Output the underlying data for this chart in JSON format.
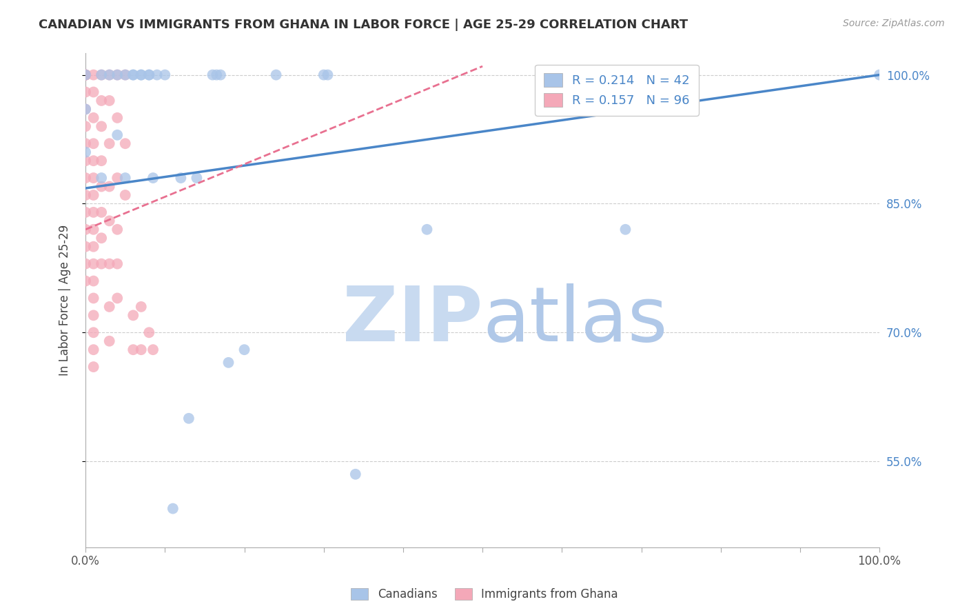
{
  "title": "CANADIAN VS IMMIGRANTS FROM GHANA IN LABOR FORCE | AGE 25-29 CORRELATION CHART",
  "source": "Source: ZipAtlas.com",
  "ylabel": "In Labor Force | Age 25-29",
  "xlim": [
    0.0,
    1.0
  ],
  "ylim": [
    0.45,
    1.025
  ],
  "yticks": [
    0.55,
    0.7,
    0.85,
    1.0
  ],
  "ytick_labels": [
    "55.0%",
    "70.0%",
    "85.0%",
    "100.0%"
  ],
  "canadians_R": 0.214,
  "canadians_N": 42,
  "ghana_R": 0.157,
  "ghana_N": 96,
  "canadians_color": "#a8c4e8",
  "ghana_color": "#f4a8b8",
  "canadians_line_color": "#4a86c8",
  "ghana_line_color": "#e87090",
  "canadians_line": [
    [
      0.0,
      0.868
    ],
    [
      1.0,
      1.0
    ]
  ],
  "ghana_line": [
    [
      0.0,
      0.82
    ],
    [
      0.5,
      1.01
    ]
  ],
  "canadians_scatter": [
    [
      0.0,
      1.0
    ],
    [
      0.0,
      0.96
    ],
    [
      0.0,
      0.91
    ],
    [
      0.02,
      1.0
    ],
    [
      0.02,
      0.88
    ],
    [
      0.03,
      1.0
    ],
    [
      0.04,
      1.0
    ],
    [
      0.04,
      0.93
    ],
    [
      0.05,
      1.0
    ],
    [
      0.05,
      0.88
    ],
    [
      0.06,
      1.0
    ],
    [
      0.06,
      1.0
    ],
    [
      0.07,
      1.0
    ],
    [
      0.07,
      1.0
    ],
    [
      0.08,
      1.0
    ],
    [
      0.08,
      1.0
    ],
    [
      0.085,
      0.88
    ],
    [
      0.09,
      1.0
    ],
    [
      0.1,
      1.0
    ],
    [
      0.11,
      0.495
    ],
    [
      0.12,
      0.88
    ],
    [
      0.13,
      0.6
    ],
    [
      0.14,
      0.88
    ],
    [
      0.16,
      1.0
    ],
    [
      0.165,
      1.0
    ],
    [
      0.17,
      1.0
    ],
    [
      0.18,
      0.665
    ],
    [
      0.2,
      0.68
    ],
    [
      0.24,
      1.0
    ],
    [
      0.3,
      1.0
    ],
    [
      0.305,
      1.0
    ],
    [
      0.34,
      0.535
    ],
    [
      0.43,
      0.82
    ],
    [
      0.68,
      0.82
    ],
    [
      1.0,
      1.0
    ]
  ],
  "ghana_scatter": [
    [
      0.0,
      1.0
    ],
    [
      0.0,
      1.0
    ],
    [
      0.0,
      1.0
    ],
    [
      0.0,
      1.0
    ],
    [
      0.0,
      1.0
    ],
    [
      0.0,
      0.98
    ],
    [
      0.0,
      0.96
    ],
    [
      0.0,
      0.94
    ],
    [
      0.0,
      0.92
    ],
    [
      0.0,
      0.9
    ],
    [
      0.0,
      0.88
    ],
    [
      0.0,
      0.86
    ],
    [
      0.0,
      0.84
    ],
    [
      0.0,
      0.82
    ],
    [
      0.0,
      0.8
    ],
    [
      0.0,
      0.78
    ],
    [
      0.0,
      0.76
    ],
    [
      0.01,
      1.0
    ],
    [
      0.01,
      0.98
    ],
    [
      0.01,
      0.95
    ],
    [
      0.01,
      0.92
    ],
    [
      0.01,
      0.9
    ],
    [
      0.01,
      0.88
    ],
    [
      0.01,
      0.86
    ],
    [
      0.01,
      0.84
    ],
    [
      0.01,
      0.82
    ],
    [
      0.01,
      0.8
    ],
    [
      0.01,
      0.78
    ],
    [
      0.01,
      0.76
    ],
    [
      0.01,
      0.74
    ],
    [
      0.01,
      0.72
    ],
    [
      0.01,
      0.7
    ],
    [
      0.01,
      0.68
    ],
    [
      0.01,
      0.66
    ],
    [
      0.02,
      1.0
    ],
    [
      0.02,
      0.97
    ],
    [
      0.02,
      0.94
    ],
    [
      0.02,
      0.9
    ],
    [
      0.02,
      0.87
    ],
    [
      0.02,
      0.84
    ],
    [
      0.02,
      0.81
    ],
    [
      0.02,
      0.78
    ],
    [
      0.03,
      1.0
    ],
    [
      0.03,
      0.97
    ],
    [
      0.03,
      0.92
    ],
    [
      0.03,
      0.87
    ],
    [
      0.03,
      0.83
    ],
    [
      0.03,
      0.78
    ],
    [
      0.03,
      0.73
    ],
    [
      0.03,
      0.69
    ],
    [
      0.04,
      1.0
    ],
    [
      0.04,
      0.95
    ],
    [
      0.04,
      0.88
    ],
    [
      0.04,
      0.82
    ],
    [
      0.04,
      0.78
    ],
    [
      0.04,
      0.74
    ],
    [
      0.05,
      1.0
    ],
    [
      0.05,
      0.92
    ],
    [
      0.05,
      0.86
    ],
    [
      0.06,
      0.72
    ],
    [
      0.06,
      0.68
    ],
    [
      0.07,
      0.73
    ],
    [
      0.07,
      0.68
    ],
    [
      0.08,
      0.7
    ],
    [
      0.085,
      0.68
    ]
  ],
  "background_color": "#ffffff",
  "grid_color": "#cccccc",
  "watermark_zip_color": "#c8daf0",
  "watermark_atlas_color": "#b0c8e8"
}
